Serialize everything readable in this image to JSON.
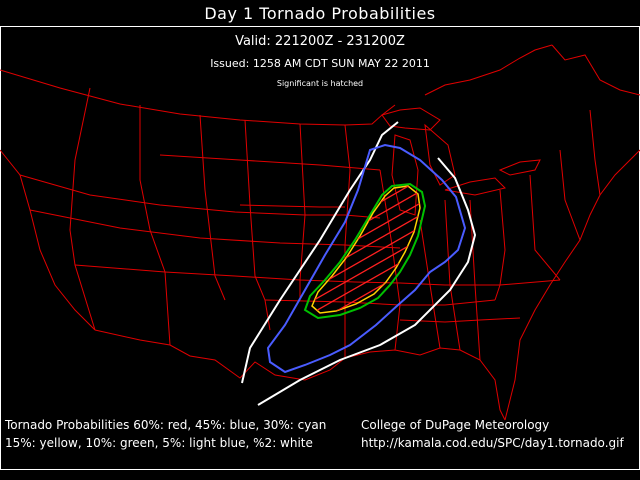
{
  "header": {
    "title": "Day 1 Tornado Probabilities",
    "valid": "Valid: 221200Z - 231200Z",
    "issued": "Issued: 1258 AM CDT SUN MAY 22 2011",
    "hatched_note": "Significant is hatched"
  },
  "legend": {
    "line1": "Tornado Probabilities 60%: red, 45%: blue, 30%: cyan",
    "line2": "15%: yellow, 10%: green, 5%: light blue, %2: white"
  },
  "credit": {
    "org": "College of DuPage Meteorology",
    "url": "http://kamala.cod.edu/SPC/day1.tornado.gif"
  },
  "colors": {
    "background": "#000000",
    "borders": "#e00000",
    "outline_2pct": "#ffffff",
    "outline_5pct": "#4a5cff",
    "outline_10pct": "#00c000",
    "outline_15pct": "#ffd400",
    "hatch_significant": "#ff2020"
  }
}
